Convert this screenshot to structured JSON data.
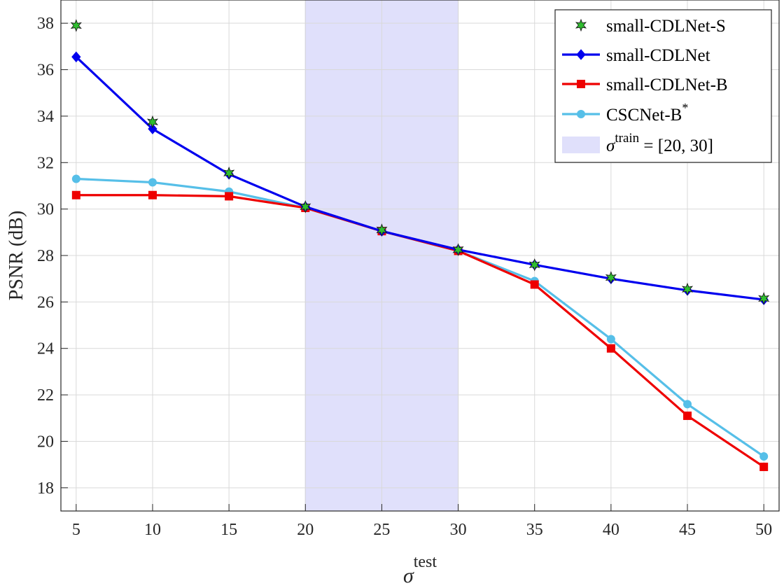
{
  "chart_data": {
    "type": "line",
    "x": [
      5,
      10,
      15,
      20,
      25,
      30,
      35,
      40,
      45,
      50
    ],
    "xlim": [
      4,
      51
    ],
    "ylim": [
      17,
      39
    ],
    "xticks": [
      "5",
      "10",
      "15",
      "20",
      "25",
      "30",
      "35",
      "40",
      "45",
      "50"
    ],
    "yticks": [
      "18",
      "20",
      "22",
      "24",
      "26",
      "28",
      "30",
      "32",
      "34",
      "36",
      "38"
    ],
    "ylabel": "PSNR (dB)",
    "xlabel": {
      "base": "σ",
      "sup": "test"
    },
    "grid": true,
    "legend_position": "top-right",
    "shaded_region": {
      "x_range": [
        20,
        30
      ],
      "color": "#e0e0fb",
      "label": {
        "base": "σ",
        "sup": "train",
        "rest": " = [20, 30]"
      }
    },
    "series": [
      {
        "name": "small-CDLNet-S",
        "style": "markers",
        "marker": "star",
        "color": "#2fbf2f",
        "values": [
          37.9,
          33.75,
          31.55,
          30.1,
          29.1,
          28.25,
          27.6,
          27.05,
          26.55,
          26.15
        ]
      },
      {
        "name": "small-CDLNet",
        "style": "line",
        "marker": "diamond",
        "color": "#0000ee",
        "values": [
          36.55,
          33.45,
          31.5,
          30.1,
          29.05,
          28.25,
          27.6,
          27.0,
          26.5,
          26.1
        ]
      },
      {
        "name": "small-CDLNet-B",
        "style": "line",
        "marker": "square",
        "color": "#ee0000",
        "values": [
          30.6,
          30.6,
          30.55,
          30.05,
          29.05,
          28.2,
          26.75,
          24.0,
          21.1,
          18.9
        ]
      },
      {
        "name": "CSCNet-B",
        "name_sup": "*",
        "style": "line",
        "marker": "circle",
        "color": "#56bfe8",
        "values": [
          31.3,
          31.15,
          30.75,
          30.05,
          29.05,
          28.2,
          26.9,
          24.4,
          21.6,
          19.35
        ]
      }
    ]
  }
}
